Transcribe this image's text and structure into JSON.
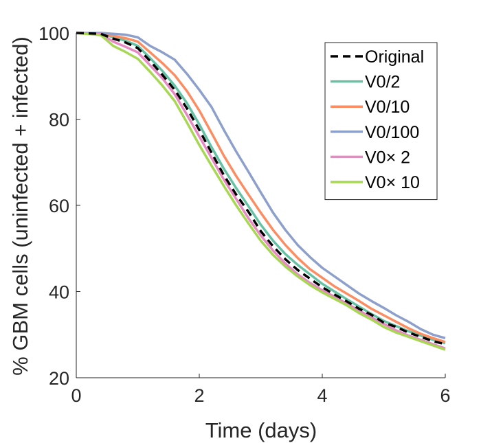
{
  "chart_data": {
    "type": "line",
    "title": "",
    "xlabel": "Time (days)",
    "ylabel": "% GBM cells (uninfected + infected)",
    "xlim": [
      0,
      6
    ],
    "ylim": [
      20,
      100
    ],
    "xticks": [
      0,
      2,
      4,
      6
    ],
    "yticks": [
      20,
      40,
      60,
      80,
      100
    ],
    "xtick_labels": [
      "0",
      "2",
      "4",
      "6"
    ],
    "ytick_labels": [
      "20",
      "40",
      "60",
      "80",
      "100"
    ],
    "grid": false,
    "legend_position": "top-right",
    "series": [
      {
        "name": "Original",
        "color": "#000000",
        "dash": "dashed",
        "x": [
          0,
          0.4,
          0.6,
          0.8,
          1.0,
          1.2,
          1.4,
          1.6,
          1.8,
          2.0,
          2.2,
          2.4,
          2.6,
          2.8,
          3.0,
          3.2,
          3.4,
          3.6,
          3.8,
          4.0,
          4.2,
          4.4,
          4.6,
          4.8,
          5.0,
          5.2,
          5.4,
          5.6,
          5.8,
          6.0
        ],
        "y": [
          100,
          99.8,
          98.7,
          97.8,
          96.5,
          93.5,
          90.3,
          86.8,
          82.5,
          77.5,
          72.2,
          67.0,
          62.5,
          58.5,
          54.0,
          50.5,
          47.5,
          45.0,
          43.0,
          41.0,
          39.3,
          37.7,
          36.0,
          34.6,
          32.8,
          31.8,
          30.5,
          29.5,
          28.5,
          27.8
        ]
      },
      {
        "name": "V0/2",
        "color": "#66c2a5",
        "dash": "solid",
        "x": [
          0,
          0.4,
          0.6,
          0.8,
          1.0,
          1.2,
          1.4,
          1.6,
          1.8,
          2.0,
          2.2,
          2.4,
          2.6,
          2.8,
          3.0,
          3.2,
          3.4,
          3.6,
          3.8,
          4.0,
          4.2,
          4.4,
          4.6,
          4.8,
          5.0,
          5.2,
          5.4,
          5.6,
          5.8,
          6.0
        ],
        "y": [
          100,
          99.9,
          99.0,
          98.2,
          97.0,
          94.2,
          91.2,
          87.8,
          83.7,
          78.8,
          73.5,
          68.5,
          64.0,
          59.8,
          55.5,
          51.8,
          48.7,
          46.2,
          44.0,
          41.8,
          40.0,
          38.2,
          36.5,
          34.8,
          33.2,
          32.0,
          30.8,
          29.8,
          28.8,
          28.0
        ]
      },
      {
        "name": "V0/10",
        "color": "#fc8d62",
        "dash": "solid",
        "x": [
          0,
          0.4,
          0.6,
          0.8,
          1.0,
          1.2,
          1.4,
          1.6,
          1.8,
          2.0,
          2.2,
          2.4,
          2.6,
          2.8,
          3.0,
          3.2,
          3.4,
          3.6,
          3.8,
          4.0,
          4.2,
          4.4,
          4.6,
          4.8,
          5.0,
          5.2,
          5.4,
          5.6,
          5.8,
          6.0
        ],
        "y": [
          100,
          99.9,
          99.3,
          98.8,
          98.0,
          95.5,
          93.0,
          90.2,
          86.5,
          82.0,
          76.8,
          71.5,
          66.8,
          62.5,
          58.3,
          54.3,
          50.8,
          47.8,
          45.2,
          43.2,
          41.2,
          39.5,
          37.8,
          36.0,
          34.5,
          33.0,
          31.5,
          30.2,
          29.2,
          28.3
        ]
      },
      {
        "name": "V0/100",
        "color": "#8da0cb",
        "dash": "solid",
        "x": [
          0,
          0.4,
          0.6,
          0.8,
          1.0,
          1.2,
          1.4,
          1.6,
          1.8,
          2.0,
          2.2,
          2.4,
          2.6,
          2.8,
          3.0,
          3.2,
          3.4,
          3.6,
          3.8,
          4.0,
          4.2,
          4.4,
          4.6,
          4.8,
          5.0,
          5.2,
          5.4,
          5.6,
          5.8,
          6.0
        ],
        "y": [
          100,
          100.0,
          99.8,
          99.6,
          99.0,
          97.0,
          95.5,
          93.8,
          90.5,
          86.8,
          82.8,
          77.5,
          72.5,
          67.8,
          63.0,
          58.3,
          54.3,
          50.8,
          48.0,
          45.5,
          43.5,
          41.5,
          39.5,
          37.8,
          36.2,
          34.5,
          33.0,
          31.3,
          30.0,
          29.2
        ]
      },
      {
        "name": "V0× 2",
        "color": "#e78ac3",
        "dash": "solid",
        "x": [
          0,
          0.4,
          0.6,
          0.8,
          1.0,
          1.2,
          1.4,
          1.6,
          1.8,
          2.0,
          2.2,
          2.4,
          2.6,
          2.8,
          3.0,
          3.2,
          3.4,
          3.6,
          3.8,
          4.0,
          4.2,
          4.4,
          4.6,
          4.8,
          5.0,
          5.2,
          5.4,
          5.6,
          5.8,
          6.0
        ],
        "y": [
          100,
          99.8,
          98.0,
          96.8,
          95.5,
          92.5,
          89.5,
          85.8,
          81.0,
          76.0,
          71.0,
          66.0,
          61.5,
          57.0,
          53.0,
          49.5,
          46.5,
          44.0,
          42.0,
          40.3,
          38.8,
          37.2,
          35.6,
          34.0,
          32.5,
          31.0,
          29.8,
          28.8,
          27.8,
          26.8
        ]
      },
      {
        "name": "V0× 10",
        "color": "#a6d854",
        "dash": "solid",
        "x": [
          0,
          0.4,
          0.6,
          0.8,
          1.0,
          1.2,
          1.4,
          1.6,
          1.8,
          2.0,
          2.2,
          2.4,
          2.6,
          2.8,
          3.0,
          3.2,
          3.4,
          3.6,
          3.8,
          4.0,
          4.2,
          4.4,
          4.6,
          4.8,
          5.0,
          5.2,
          5.4,
          5.6,
          5.8,
          6.0
        ],
        "y": [
          100,
          99.5,
          97.0,
          95.6,
          94.0,
          91.0,
          87.8,
          84.2,
          79.2,
          74.0,
          69.2,
          64.5,
          60.0,
          55.8,
          51.8,
          48.5,
          45.8,
          43.5,
          41.5,
          39.8,
          38.3,
          36.8,
          35.0,
          33.5,
          31.8,
          30.5,
          29.5,
          28.5,
          27.5,
          26.5
        ]
      }
    ]
  }
}
